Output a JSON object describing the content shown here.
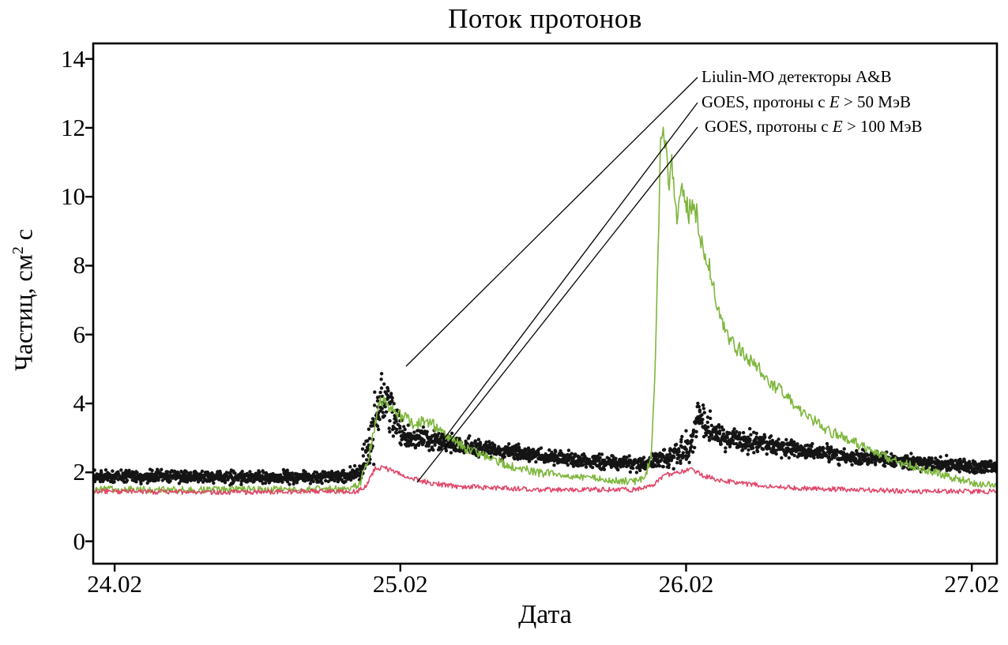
{
  "title": "Поток протонов",
  "chart_data": {
    "type": "line",
    "title": "Поток протонов",
    "xlabel": "Дата",
    "ylabel": "Частиц, см2 с",
    "ylabel_parts": {
      "pre": "Частиц, см",
      "sup": "2",
      "post": " с"
    },
    "xlim": [
      23.945,
      27.108
    ],
    "ylim": [
      -0.65,
      14.45
    ],
    "grid": false,
    "x_ticks": [
      {
        "value": 24.02,
        "label": "24.02"
      },
      {
        "value": 25.02,
        "label": "25.02"
      },
      {
        "value": 26.02,
        "label": "26.02"
      },
      {
        "value": 27.02,
        "label": "27.02"
      }
    ],
    "y_ticks": [
      {
        "value": 0,
        "label": "0"
      },
      {
        "value": 2,
        "label": "2"
      },
      {
        "value": 4,
        "label": "4"
      },
      {
        "value": 6,
        "label": "6"
      },
      {
        "value": 8,
        "label": "8"
      },
      {
        "value": 10,
        "label": "10"
      },
      {
        "value": 12,
        "label": "12"
      },
      {
        "value": 14,
        "label": "14"
      }
    ],
    "series": [
      {
        "name": "Liulin-MO детекторы A&B",
        "type": "scatter",
        "color": "#151515",
        "keypoints": [
          [
            23.945,
            1.9,
            0.13
          ],
          [
            24.3,
            1.87,
            0.13
          ],
          [
            24.6,
            1.85,
            0.13
          ],
          [
            24.8,
            1.88,
            0.13
          ],
          [
            24.87,
            1.95,
            0.16
          ],
          [
            24.9,
            2.4,
            0.4
          ],
          [
            24.925,
            3.3,
            0.62
          ],
          [
            24.95,
            4.1,
            0.6
          ],
          [
            24.975,
            4.2,
            0.5
          ],
          [
            25.0,
            3.5,
            0.45
          ],
          [
            25.03,
            3.1,
            0.3
          ],
          [
            25.07,
            3.0,
            0.22
          ],
          [
            25.15,
            2.9,
            0.2
          ],
          [
            25.3,
            2.7,
            0.17
          ],
          [
            25.45,
            2.55,
            0.16
          ],
          [
            25.6,
            2.4,
            0.15
          ],
          [
            25.75,
            2.3,
            0.15
          ],
          [
            25.88,
            2.25,
            0.16
          ],
          [
            25.95,
            2.45,
            0.25
          ],
          [
            26.0,
            2.6,
            0.28
          ],
          [
            26.035,
            2.8,
            0.35
          ],
          [
            26.06,
            3.5,
            0.4
          ],
          [
            26.085,
            3.4,
            0.35
          ],
          [
            26.13,
            3.1,
            0.28
          ],
          [
            26.2,
            2.95,
            0.22
          ],
          [
            26.3,
            2.8,
            0.2
          ],
          [
            26.45,
            2.6,
            0.18
          ],
          [
            26.6,
            2.45,
            0.16
          ],
          [
            26.75,
            2.35,
            0.15
          ],
          [
            26.9,
            2.25,
            0.15
          ],
          [
            27.0,
            2.2,
            0.14
          ],
          [
            27.108,
            2.15,
            0.14
          ]
        ]
      },
      {
        "name": "GOES, протоны с E > 50 МэВ",
        "type": "line",
        "color": "#7eb63c",
        "noise": "prop",
        "keypoints": [
          [
            23.945,
            1.5
          ],
          [
            24.5,
            1.5
          ],
          [
            24.85,
            1.52
          ],
          [
            24.88,
            1.7
          ],
          [
            24.91,
            2.5
          ],
          [
            24.945,
            4.0
          ],
          [
            24.96,
            4.15
          ],
          [
            24.99,
            3.8
          ],
          [
            25.03,
            3.6
          ],
          [
            25.07,
            3.4
          ],
          [
            25.1,
            3.5
          ],
          [
            25.14,
            3.35
          ],
          [
            25.18,
            3.1
          ],
          [
            25.25,
            2.7
          ],
          [
            25.32,
            2.45
          ],
          [
            25.4,
            2.2
          ],
          [
            25.5,
            2.0
          ],
          [
            25.6,
            1.9
          ],
          [
            25.72,
            1.8
          ],
          [
            25.84,
            1.75
          ],
          [
            25.875,
            1.8
          ],
          [
            25.9,
            2.6
          ],
          [
            25.915,
            6.0
          ],
          [
            25.93,
            11.2
          ],
          [
            25.94,
            12.1
          ],
          [
            25.95,
            11.3
          ],
          [
            25.96,
            10.2
          ],
          [
            25.97,
            10.8
          ],
          [
            25.985,
            9.4
          ],
          [
            26.0,
            10.3
          ],
          [
            26.01,
            9.9
          ],
          [
            26.03,
            9.6
          ],
          [
            26.05,
            9.8
          ],
          [
            26.07,
            8.9
          ],
          [
            26.09,
            8.3
          ],
          [
            26.11,
            7.6
          ],
          [
            26.13,
            6.8
          ],
          [
            26.16,
            6.0
          ],
          [
            26.2,
            5.6
          ],
          [
            26.24,
            5.3
          ],
          [
            26.28,
            5.0
          ],
          [
            26.32,
            4.6
          ],
          [
            26.38,
            4.1
          ],
          [
            26.45,
            3.6
          ],
          [
            26.52,
            3.2
          ],
          [
            26.6,
            2.9
          ],
          [
            26.68,
            2.6
          ],
          [
            26.76,
            2.3
          ],
          [
            26.85,
            2.1
          ],
          [
            26.95,
            1.85
          ],
          [
            27.03,
            1.7
          ],
          [
            27.108,
            1.6
          ]
        ]
      },
      {
        "name": "GOES, протоны с E > 100 МэВ",
        "type": "line",
        "color": "#e0476a",
        "noise": 0.07,
        "keypoints": [
          [
            23.945,
            1.45
          ],
          [
            24.4,
            1.42
          ],
          [
            24.75,
            1.45
          ],
          [
            24.87,
            1.45
          ],
          [
            24.9,
            1.6
          ],
          [
            24.93,
            2.1
          ],
          [
            24.96,
            2.15
          ],
          [
            25.0,
            2.0
          ],
          [
            25.05,
            1.85
          ],
          [
            25.12,
            1.7
          ],
          [
            25.2,
            1.6
          ],
          [
            25.35,
            1.55
          ],
          [
            25.5,
            1.5
          ],
          [
            25.7,
            1.5
          ],
          [
            25.85,
            1.5
          ],
          [
            25.9,
            1.6
          ],
          [
            25.94,
            1.9
          ],
          [
            25.99,
            2.0
          ],
          [
            26.04,
            2.1
          ],
          [
            26.08,
            1.9
          ],
          [
            26.15,
            1.75
          ],
          [
            26.25,
            1.65
          ],
          [
            26.4,
            1.55
          ],
          [
            26.6,
            1.5
          ],
          [
            26.8,
            1.45
          ],
          [
            27.0,
            1.45
          ],
          [
            27.108,
            1.45
          ]
        ]
      }
    ],
    "annotations": [
      {
        "text": "Liulin-MO детекторы A&B",
        "parts": {
          "pre": "Liulin-MO детекторы A&B",
          "e": "",
          "post": ""
        },
        "leader_line": [
          883,
          98,
          514,
          464
        ]
      },
      {
        "text": "GOES, протоны с E > 50 МэВ",
        "parts": {
          "pre": "GOES, протоны с ",
          "e": "E",
          "post": " > 50 МэВ"
        },
        "leader_line": [
          883,
          130,
          562,
          556
        ]
      },
      {
        "text": "GOES, протоны с E > 100 МэВ",
        "parts": {
          "pre": "GOES, протоны с ",
          "e": "E",
          "post": " > 100 МэВ"
        },
        "leader_line": [
          883,
          161,
          528,
          611
        ]
      }
    ]
  }
}
